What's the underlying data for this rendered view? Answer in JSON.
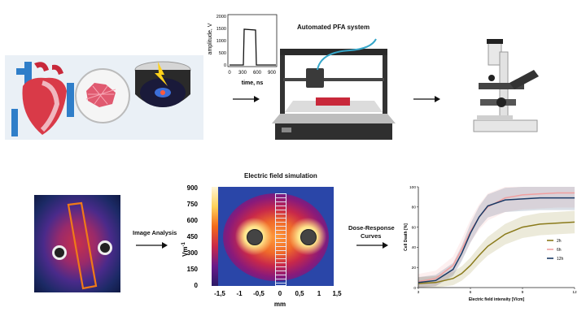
{
  "pulse_plot": {
    "ylabel": "amplitude, V",
    "yticks": [
      "2000",
      "1500",
      "1000",
      "500",
      "0"
    ],
    "xticks": [
      "0",
      "300",
      "600",
      "900"
    ],
    "xlabel": "time, ns"
  },
  "pfa_system": {
    "title": "Automated PFA system"
  },
  "field_sim": {
    "title": "Electric field simulation",
    "colorbar_ticks": [
      "900",
      "750",
      "600",
      "450",
      "300",
      "150",
      "0"
    ],
    "colorbar_unit": "Vm",
    "colorbar_unit_sup": "-1",
    "xticks": [
      "-1,5",
      "-1",
      "-0,5",
      "0",
      "0,5",
      "1",
      "1,5"
    ],
    "xlabel": "mm"
  },
  "arrows": {
    "image_analysis": "Image Analysis",
    "dose_response_line1": "Dose-Response",
    "dose_response_line2": "Curves"
  },
  "dose_chart": {
    "ylabel": "Cell Death [%]",
    "yticks": [
      "100",
      "80",
      "60",
      "40",
      "20",
      "0"
    ],
    "xticks": [
      "3",
      "6",
      "9",
      "12"
    ],
    "xlabel": "Electric field intensity [V/cm]",
    "legend": [
      {
        "name": "2h",
        "color": "#8a7a1a"
      },
      {
        "name": "6h",
        "color": "#f0a0a0"
      },
      {
        "name": "12h",
        "color": "#1a3a66"
      }
    ]
  },
  "chart_data": {
    "type": "line",
    "xlabel": "Electric field intensity [V/cm]",
    "ylabel": "Cell Death [%]",
    "xlim": [
      3,
      12
    ],
    "ylim": [
      0,
      100
    ],
    "x": [
      3,
      4,
      5,
      5.5,
      6,
      6.5,
      7,
      8,
      9,
      10,
      11,
      12
    ],
    "series": [
      {
        "name": "2h",
        "values": [
          4,
          5,
          9,
          14,
          22,
          32,
          41,
          53,
          60,
          63,
          64,
          65
        ]
      },
      {
        "name": "6h",
        "values": [
          6,
          9,
          22,
          38,
          56,
          70,
          80,
          89,
          92,
          93,
          94,
          94
        ]
      },
      {
        "name": "12h",
        "values": [
          5,
          7,
          18,
          34,
          54,
          70,
          81,
          87,
          88,
          89,
          89,
          89
        ]
      }
    ]
  }
}
